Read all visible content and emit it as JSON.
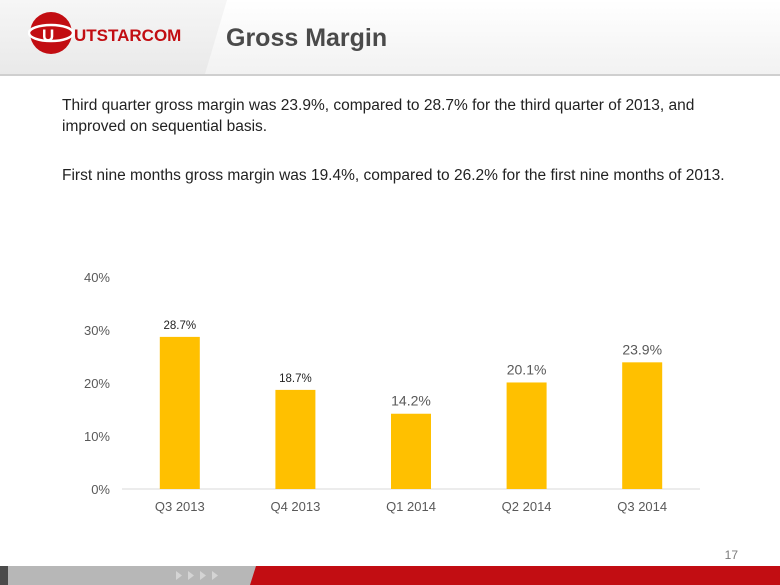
{
  "header": {
    "logo_text": "UTSTARCOM",
    "title": "Gross Margin"
  },
  "body": {
    "paragraph_1": "Third quarter gross margin was 23.9%, compared to 28.7% for the third quarter of 2013, and improved on sequential basis.",
    "paragraph_2": "First nine months gross margin was 19.4%, compared to 26.2% for the first nine months of 2013."
  },
  "chart_data": {
    "type": "bar",
    "title": "",
    "xlabel": "",
    "ylabel": "",
    "categories": [
      "Q3 2013",
      "Q4 2013",
      "Q1 2014",
      "Q2 2014",
      "Q3 2014"
    ],
    "values": [
      28.7,
      18.7,
      14.2,
      20.1,
      23.9
    ],
    "value_labels": [
      "28.7%",
      "18.7%",
      "14.2%",
      "20.1%",
      "23.9%"
    ],
    "ylim": [
      0,
      40
    ],
    "yticks": [
      0,
      10,
      20,
      30,
      40
    ],
    "ytick_labels": [
      "0%",
      "10%",
      "20%",
      "30%",
      "40%"
    ],
    "bar_color": "#ffc000",
    "grid": false,
    "legend": "none"
  },
  "footer": {
    "page_number": "17"
  },
  "colors": {
    "brand_red": "#c20d12",
    "title_gray": "#4a4a4a"
  }
}
